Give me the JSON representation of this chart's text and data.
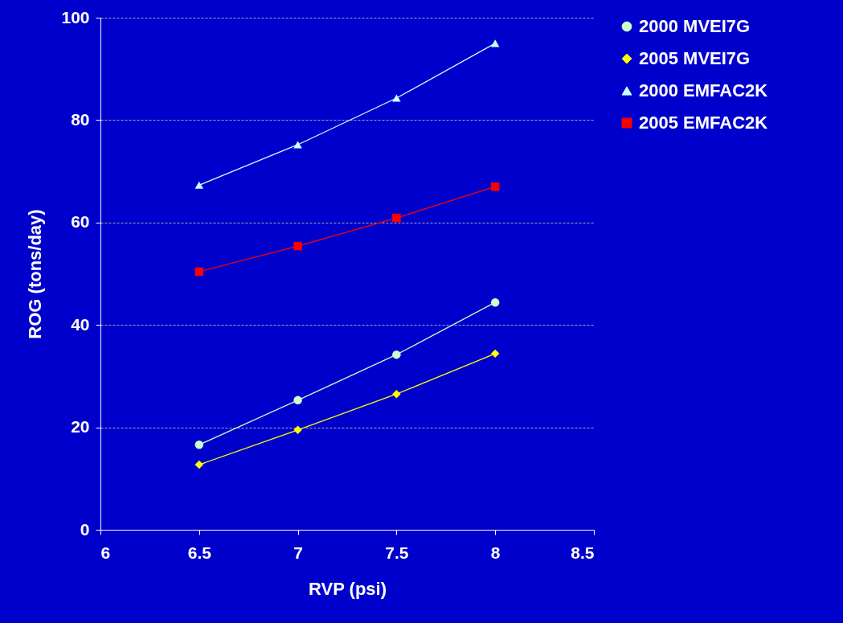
{
  "chart_data": {
    "type": "line",
    "xlabel": "RVP (psi)",
    "ylabel": "ROG (tons/day)",
    "x": [
      6.5,
      7,
      7.5,
      8
    ],
    "xlim": [
      6,
      8.5
    ],
    "xticks": [
      6,
      6.5,
      7,
      7.5,
      8,
      8.5
    ],
    "ylim": [
      0,
      100
    ],
    "yticks": [
      0,
      20,
      40,
      60,
      80,
      100
    ],
    "grid": "y",
    "legend": "right",
    "series": [
      {
        "name": "2000 MVEI7G",
        "color": "#ccffcc",
        "marker": "circle",
        "values": [
          16.6,
          25.3,
          34.2,
          44.4
        ]
      },
      {
        "name": "2005 MVEI7G",
        "color": "#ffff00",
        "marker": "diamond",
        "values": [
          12.7,
          19.5,
          26.5,
          34.4
        ]
      },
      {
        "name": "2000 EMFAC2K",
        "color": "#ccffff",
        "marker": "triangle",
        "values": [
          67.3,
          75.2,
          84.3,
          95.0
        ]
      },
      {
        "name": "2005 EMFAC2K",
        "color": "#ff0000",
        "marker": "square",
        "values": [
          50.4,
          55.4,
          60.9,
          67.0
        ]
      }
    ]
  }
}
